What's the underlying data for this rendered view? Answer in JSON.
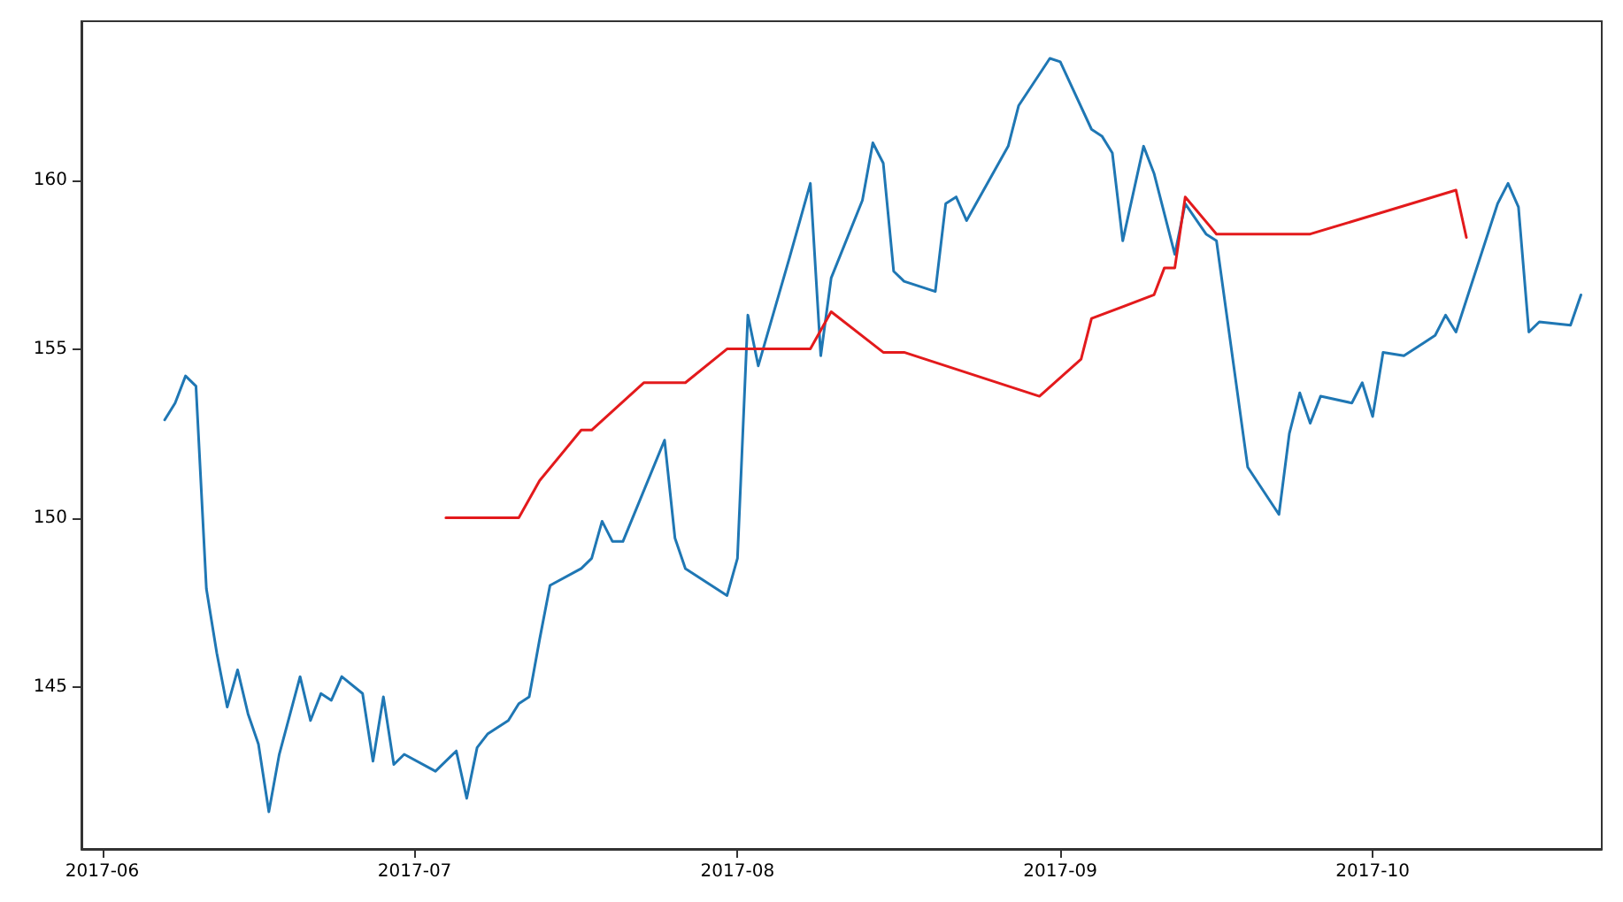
{
  "chart_data": {
    "type": "line",
    "xlim": [
      "2017-05-30",
      "2017-10-23"
    ],
    "xticks": [
      "2017-06",
      "2017-07",
      "2017-08",
      "2017-09",
      "2017-10"
    ],
    "ylim": [
      140.2,
      164.7
    ],
    "yticks": [
      145,
      150,
      155,
      160
    ],
    "grid": false,
    "marker": "none",
    "line_style": "solid",
    "series": [
      {
        "color": "#1f77b4",
        "x": [
          "2017-06-07",
          "2017-06-08",
          "2017-06-09",
          "2017-06-10",
          "2017-06-11",
          "2017-06-12",
          "2017-06-13",
          "2017-06-14",
          "2017-06-15",
          "2017-06-16",
          "2017-06-17",
          "2017-06-18",
          "2017-06-20",
          "2017-06-21",
          "2017-06-22",
          "2017-06-23",
          "2017-06-24",
          "2017-06-26",
          "2017-06-27",
          "2017-06-28",
          "2017-06-29",
          "2017-06-30",
          "2017-07-03",
          "2017-07-05",
          "2017-07-06",
          "2017-07-07",
          "2017-07-08",
          "2017-07-10",
          "2017-07-11",
          "2017-07-12",
          "2017-07-13",
          "2017-07-14",
          "2017-07-17",
          "2017-07-18",
          "2017-07-19",
          "2017-07-20",
          "2017-07-21",
          "2017-07-25",
          "2017-07-26",
          "2017-07-27",
          "2017-07-31",
          "2017-08-01",
          "2017-08-02",
          "2017-08-03",
          "2017-08-06",
          "2017-08-08",
          "2017-08-09",
          "2017-08-10",
          "2017-08-13",
          "2017-08-14",
          "2017-08-15",
          "2017-08-16",
          "2017-08-17",
          "2017-08-20",
          "2017-08-21",
          "2017-08-22",
          "2017-08-23",
          "2017-08-27",
          "2017-08-28",
          "2017-08-31",
          "2017-09-01",
          "2017-09-04",
          "2017-09-05",
          "2017-09-06",
          "2017-09-07",
          "2017-09-09",
          "2017-09-10",
          "2017-09-12",
          "2017-09-13",
          "2017-09-15",
          "2017-09-16",
          "2017-09-19",
          "2017-09-22",
          "2017-09-23",
          "2017-09-24",
          "2017-09-25",
          "2017-09-26",
          "2017-09-29",
          "2017-09-30",
          "2017-10-01",
          "2017-10-02",
          "2017-10-04",
          "2017-10-06",
          "2017-10-07",
          "2017-10-08",
          "2017-10-09",
          "2017-10-13",
          "2017-10-14",
          "2017-10-15",
          "2017-10-16",
          "2017-10-17",
          "2017-10-20",
          "2017-10-21"
        ],
        "values": [
          152.9,
          153.4,
          154.2,
          153.9,
          147.9,
          146.0,
          144.4,
          145.5,
          144.2,
          143.3,
          141.3,
          143.0,
          145.3,
          144.0,
          144.8,
          144.6,
          145.3,
          144.8,
          142.8,
          144.7,
          142.7,
          143.0,
          142.5,
          143.1,
          141.7,
          143.2,
          143.6,
          144.0,
          144.5,
          144.7,
          146.4,
          148.0,
          148.5,
          148.8,
          149.9,
          149.3,
          149.3,
          152.3,
          149.4,
          148.5,
          147.7,
          148.8,
          156.0,
          154.5,
          157.7,
          159.9,
          154.8,
          157.1,
          159.4,
          161.1,
          160.5,
          157.3,
          157.0,
          156.7,
          159.3,
          159.5,
          158.8,
          161.0,
          162.2,
          163.6,
          163.5,
          161.5,
          161.3,
          160.8,
          158.2,
          161.0,
          160.2,
          157.8,
          159.3,
          158.4,
          158.2,
          151.5,
          150.1,
          152.5,
          153.7,
          152.8,
          153.6,
          153.4,
          154.0,
          153.0,
          154.9,
          154.8,
          155.2,
          155.4,
          156.0,
          155.5,
          159.3,
          159.9,
          159.2,
          155.5,
          155.8,
          155.7,
          156.6
        ]
      },
      {
        "color": "#e31a1c",
        "x": [
          "2017-07-04",
          "2017-07-11",
          "2017-07-13",
          "2017-07-17",
          "2017-07-18",
          "2017-07-23",
          "2017-07-27",
          "2017-07-31",
          "2017-08-08",
          "2017-08-10",
          "2017-08-15",
          "2017-08-17",
          "2017-08-30",
          "2017-09-03",
          "2017-09-04",
          "2017-09-10",
          "2017-09-11",
          "2017-09-12",
          "2017-09-13",
          "2017-09-16",
          "2017-09-25",
          "2017-10-09",
          "2017-10-10"
        ],
        "values": [
          150.0,
          150.0,
          151.1,
          152.6,
          152.6,
          154.0,
          154.0,
          155.0,
          155.0,
          156.1,
          154.9,
          154.9,
          153.6,
          154.7,
          155.9,
          156.6,
          157.4,
          157.4,
          159.5,
          158.4,
          158.4,
          159.7,
          158.3
        ]
      }
    ]
  }
}
